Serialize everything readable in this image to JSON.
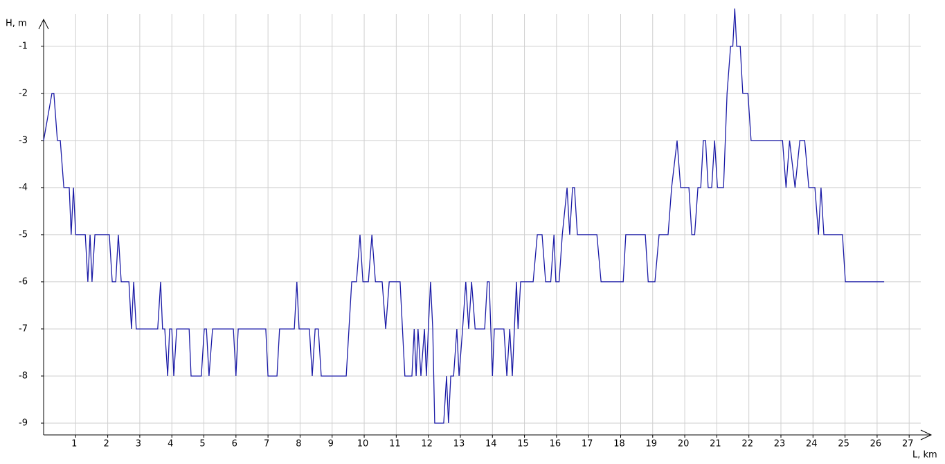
{
  "chart_data": {
    "type": "line",
    "y_label": "H, m",
    "x_label": "L, km",
    "x": [
      0,
      0.26,
      0.32,
      0.43,
      0.52,
      0.63,
      0.8,
      0.86,
      0.93,
      1.0,
      1.3,
      1.38,
      1.45,
      1.51,
      1.6,
      2.05,
      2.14,
      2.25,
      2.33,
      2.42,
      2.66,
      2.74,
      2.81,
      2.89,
      3.56,
      3.65,
      3.71,
      3.78,
      3.87,
      3.93,
      4.0,
      4.06,
      4.15,
      4.54,
      4.6,
      4.92,
      5.01,
      5.08,
      5.16,
      5.27,
      5.92,
      6.0,
      6.07,
      6.93,
      7.0,
      7.28,
      7.36,
      7.82,
      7.9,
      7.97,
      8.29,
      8.38,
      8.47,
      8.57,
      8.66,
      9.44,
      9.61,
      9.76,
      9.87,
      9.96,
      10.13,
      10.24,
      10.35,
      10.56,
      10.67,
      10.78,
      11.12,
      11.27,
      11.49,
      11.56,
      11.62,
      11.68,
      11.77,
      11.88,
      11.94,
      12.0,
      12.07,
      12.14,
      12.2,
      12.48,
      12.57,
      12.63,
      12.7,
      12.79,
      12.89,
      12.96,
      13.07,
      13.17,
      13.26,
      13.35,
      13.46,
      13.76,
      13.84,
      13.9,
      14.0,
      14.06,
      14.36,
      14.45,
      14.54,
      14.62,
      14.75,
      14.8,
      14.88,
      15.27,
      15.4,
      15.55,
      15.66,
      15.82,
      15.92,
      15.98,
      16.08,
      16.18,
      16.33,
      16.41,
      16.5,
      16.56,
      16.65,
      17.26,
      17.39,
      18.08,
      18.16,
      18.77,
      18.86,
      19.07,
      19.2,
      19.48,
      19.59,
      19.76,
      19.87,
      20.13,
      20.22,
      20.31,
      20.41,
      20.5,
      20.58,
      20.65,
      20.73,
      20.84,
      20.93,
      21.02,
      21.21,
      21.32,
      21.43,
      21.5,
      21.56,
      21.62,
      21.73,
      21.81,
      21.97,
      22.07,
      23.05,
      23.16,
      23.27,
      23.44,
      23.59,
      23.74,
      23.87,
      24.06,
      24.17,
      24.25,
      24.34,
      24.92,
      25.01,
      26.22
    ],
    "series": [
      {
        "color": "#1a1aa6",
        "values": [
          -3,
          -2,
          -2,
          -3,
          -3,
          -4,
          -4,
          -5,
          -4,
          -5,
          -5,
          -6,
          -5,
          -6,
          -5,
          -5,
          -6,
          -6,
          -5,
          -6,
          -6,
          -7,
          -6,
          -7,
          -7,
          -6,
          -7,
          -7,
          -8,
          -7,
          -7,
          -8,
          -7,
          -7,
          -8,
          -8,
          -7,
          -7,
          -8,
          -7,
          -7,
          -8,
          -7,
          -7,
          -8,
          -8,
          -7,
          -7,
          -6,
          -7,
          -7,
          -8,
          -7,
          -7,
          -8,
          -8,
          -6,
          -6,
          -5,
          -6,
          -6,
          -5,
          -6,
          -6,
          -7,
          -6,
          -6,
          -8,
          -8,
          -7,
          -8,
          -7,
          -8,
          -7,
          -8,
          -7,
          -6,
          -7,
          -9,
          -9,
          -8,
          -9,
          -8,
          -8,
          -7,
          -8,
          -7,
          -6,
          -7,
          -6,
          -7,
          -7,
          -6,
          -6,
          -8,
          -7,
          -7,
          -8,
          -7,
          -8,
          -6,
          -7,
          -6,
          -6,
          -5,
          -5,
          -6,
          -6,
          -5,
          -6,
          -6,
          -5,
          -4,
          -5,
          -4,
          -4,
          -5,
          -5,
          -6,
          -6,
          -5,
          -5,
          -6,
          -6,
          -5,
          -5,
          -4,
          -3,
          -4,
          -4,
          -5,
          -5,
          -4,
          -4,
          -3,
          -3,
          -4,
          -4,
          -3,
          -4,
          -4,
          -2,
          -1,
          -1,
          -0.2,
          -1,
          -1,
          -2,
          -2,
          -3,
          -3,
          -4,
          -3,
          -4,
          -3,
          -3,
          -4,
          -4,
          -5,
          -4,
          -5,
          -5,
          -6,
          -6
        ]
      }
    ],
    "xlim": [
      0,
      27.6
    ],
    "ylim": [
      -9.25,
      -0.15
    ],
    "xticks": [
      1,
      2,
      3,
      4,
      5,
      6,
      7,
      8,
      9,
      10,
      11,
      12,
      13,
      14,
      15,
      16,
      17,
      18,
      19,
      20,
      21,
      22,
      23,
      24,
      25,
      26,
      27
    ],
    "yticks": [
      -9,
      -8,
      -7,
      -6,
      -5,
      -4,
      -3,
      -2,
      -1
    ],
    "grid": true
  }
}
